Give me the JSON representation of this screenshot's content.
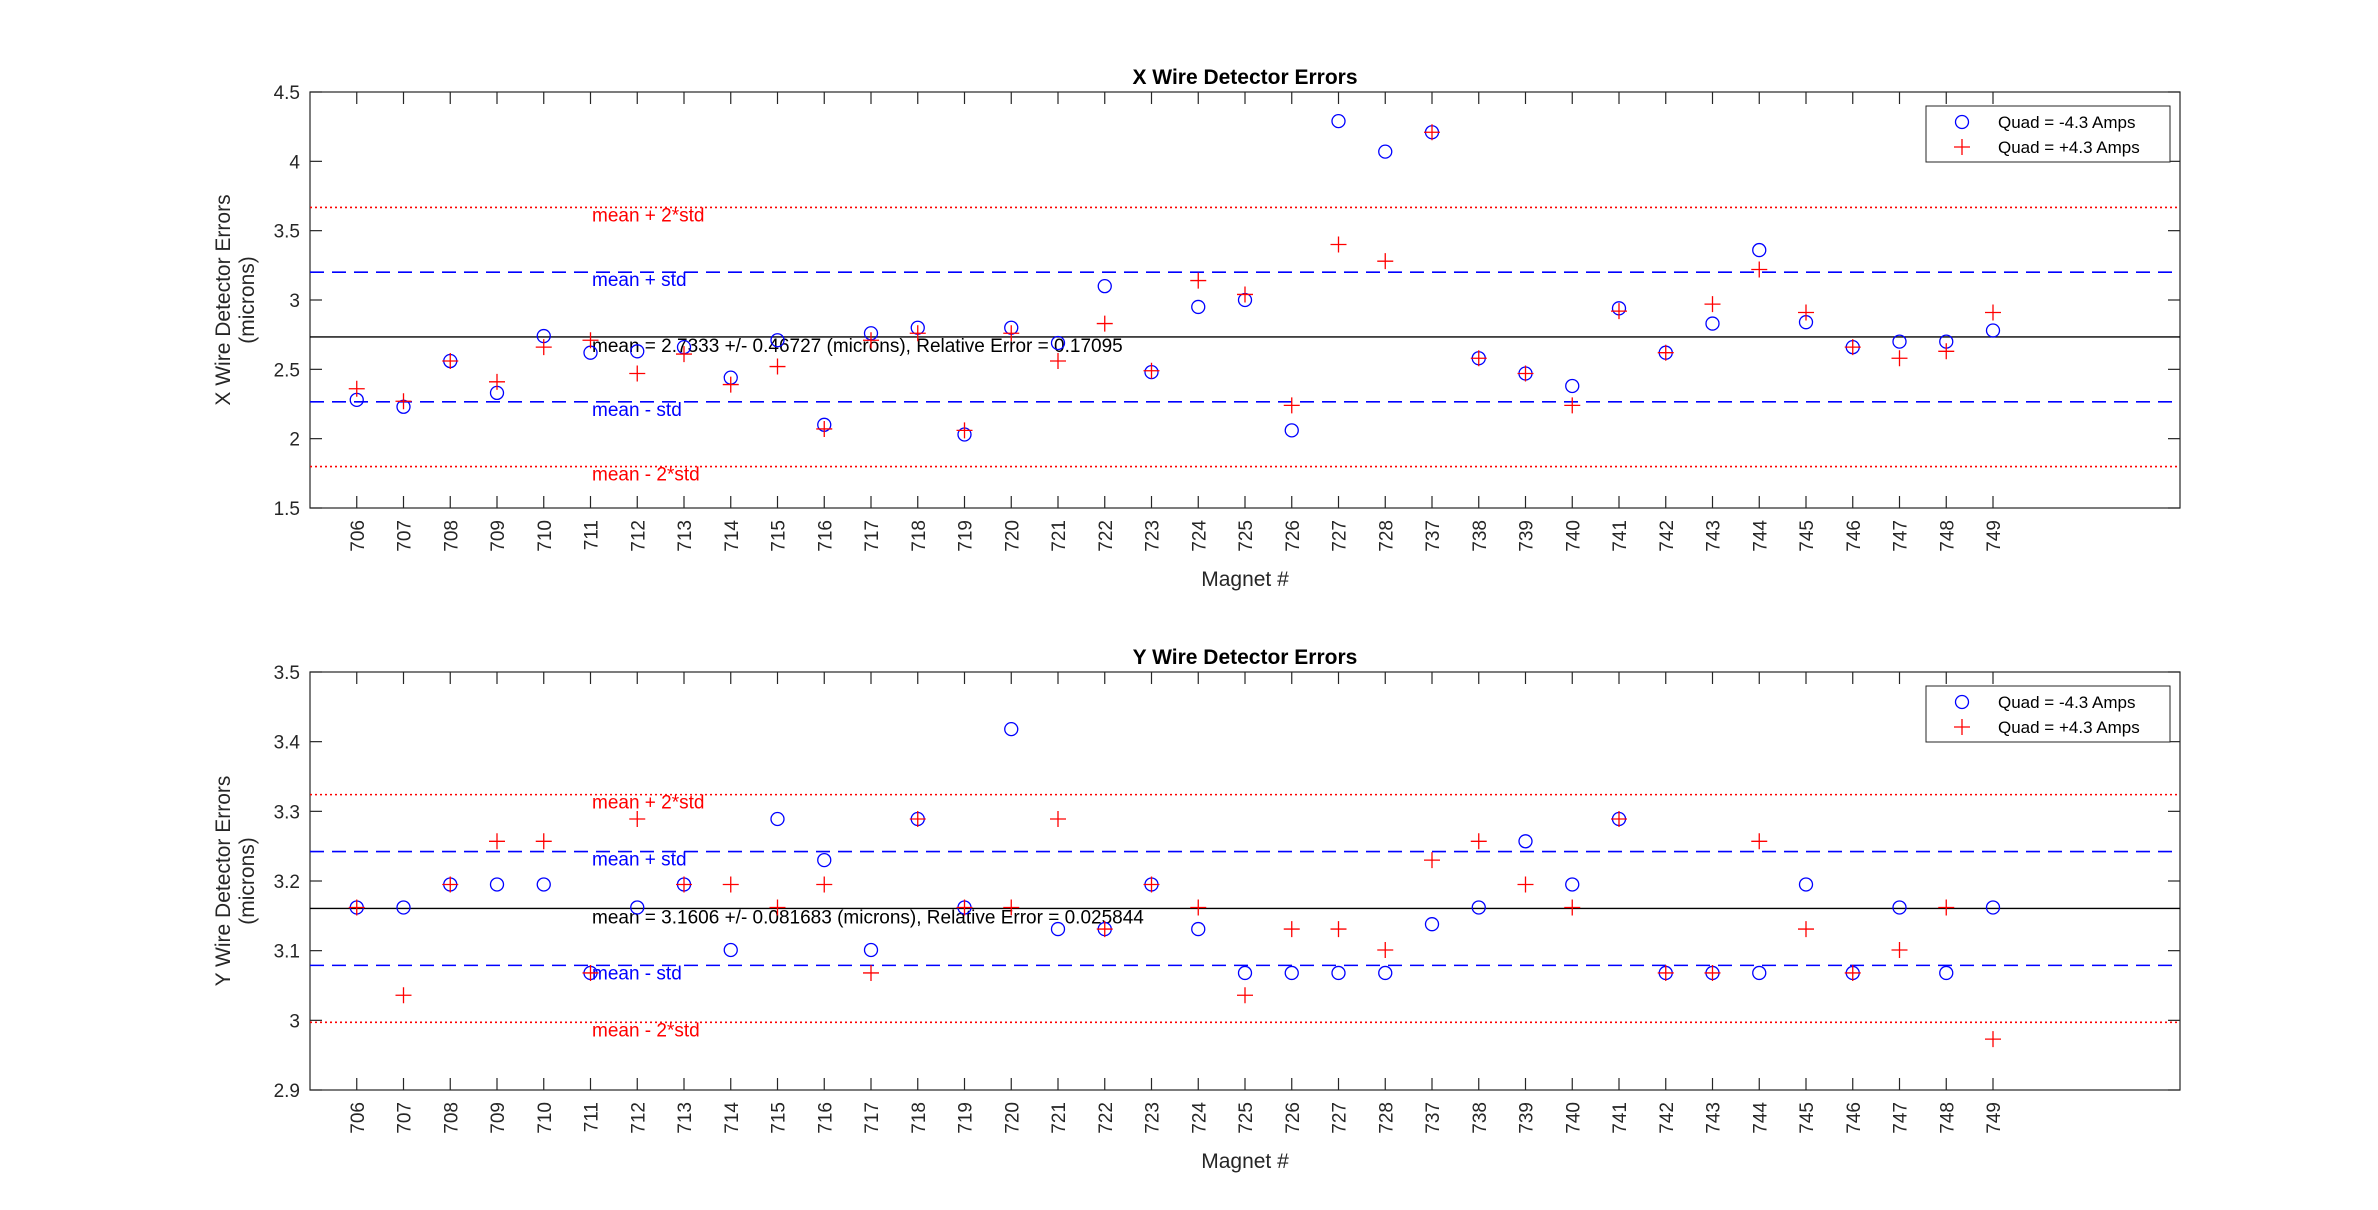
{
  "chart_data": [
    {
      "type": "scatter",
      "title": "X Wire Detector Errors",
      "xlabel": "Magnet #",
      "ylabel": [
        "X Wire Detector Errors",
        "(microns)"
      ],
      "categories": [
        "706",
        "707",
        "708",
        "709",
        "710",
        "711",
        "712",
        "713",
        "714",
        "715",
        "716",
        "717",
        "718",
        "719",
        "720",
        "721",
        "722",
        "723",
        "724",
        "725",
        "726",
        "727",
        "728",
        "737",
        "738",
        "739",
        "740",
        "741",
        "742",
        "743",
        "744",
        "745",
        "746",
        "747",
        "748",
        "749"
      ],
      "ylim": [
        1.5,
        4.5
      ],
      "yticks": [
        1.5,
        2,
        2.5,
        3,
        3.5,
        4,
        4.5
      ],
      "ytick_labels": [
        "1.5",
        "2",
        "2.5",
        "3",
        "3.5",
        "4",
        "4.5"
      ],
      "legend_position": "top-right",
      "series": [
        {
          "name": "Quad = -4.3 Amps",
          "marker": "circle",
          "color": "#0000ff",
          "values": [
            2.28,
            2.23,
            2.56,
            2.33,
            2.74,
            2.62,
            2.63,
            2.66,
            2.44,
            2.71,
            2.1,
            2.76,
            2.8,
            2.03,
            2.8,
            2.69,
            3.1,
            2.48,
            2.95,
            3.0,
            2.06,
            4.29,
            4.07,
            4.21,
            2.58,
            2.47,
            2.38,
            2.94,
            2.62,
            2.83,
            3.36,
            2.84,
            2.66,
            2.7,
            2.7,
            2.78
          ]
        },
        {
          "name": "Quad = +4.3 Amps",
          "marker": "plus",
          "color": "#ff0000",
          "values": [
            2.36,
            2.27,
            2.56,
            2.41,
            2.66,
            2.71,
            2.47,
            2.61,
            2.39,
            2.52,
            2.07,
            2.71,
            2.76,
            2.06,
            2.76,
            2.56,
            2.83,
            2.49,
            3.14,
            3.04,
            2.24,
            3.4,
            3.28,
            4.21,
            2.58,
            2.47,
            2.24,
            2.92,
            2.62,
            2.97,
            3.22,
            2.91,
            2.66,
            2.58,
            2.63,
            2.91
          ]
        }
      ],
      "reference_lines": [
        {
          "y": 3.6678,
          "style": "dotted",
          "color": "#ff0000",
          "label": "mean + 2*std",
          "label_color": "#ff0000"
        },
        {
          "y": 3.2006,
          "style": "dashed",
          "color": "#0000ff",
          "label": "mean + std",
          "label_color": "#0000ff"
        },
        {
          "y": 2.7333,
          "style": "solid",
          "color": "#000000",
          "label": "mean = 2.7333 +/- 0.46727 (microns), Relative Error = 0.17095",
          "label_color": "#000000"
        },
        {
          "y": 2.2661,
          "style": "dashed",
          "color": "#0000ff",
          "label": "mean - std",
          "label_color": "#0000ff"
        },
        {
          "y": 1.7988,
          "style": "dotted",
          "color": "#ff0000",
          "label": "mean - 2*std",
          "label_color": "#ff0000"
        }
      ]
    },
    {
      "type": "scatter",
      "title": "Y Wire Detector Errors",
      "xlabel": "Magnet #",
      "ylabel": [
        "Y Wire Detector Errors",
        "(microns)"
      ],
      "categories": [
        "706",
        "707",
        "708",
        "709",
        "710",
        "711",
        "712",
        "713",
        "714",
        "715",
        "716",
        "717",
        "718",
        "719",
        "720",
        "721",
        "722",
        "723",
        "724",
        "725",
        "726",
        "727",
        "728",
        "737",
        "738",
        "739",
        "740",
        "741",
        "742",
        "743",
        "744",
        "745",
        "746",
        "747",
        "748",
        "749"
      ],
      "ylim": [
        2.9,
        3.5
      ],
      "yticks": [
        2.9,
        3.0,
        3.1,
        3.2,
        3.3,
        3.4,
        3.5
      ],
      "ytick_labels": [
        "2.9",
        "3",
        "3.1",
        "3.2",
        "3.3",
        "3.4",
        "3.5"
      ],
      "legend_position": "top-right",
      "series": [
        {
          "name": "Quad = -4.3 Amps",
          "marker": "circle",
          "color": "#0000ff",
          "values": [
            3.162,
            3.162,
            3.195,
            3.195,
            3.195,
            3.068,
            3.162,
            3.195,
            3.101,
            3.289,
            3.23,
            3.101,
            3.289,
            3.162,
            3.418,
            3.131,
            3.131,
            3.195,
            3.131,
            3.068,
            3.068,
            3.068,
            3.068,
            3.138,
            3.162,
            3.257,
            3.195,
            3.289,
            3.068,
            3.068,
            3.068,
            3.195,
            3.068,
            3.162,
            3.068,
            3.162
          ]
        },
        {
          "name": "Quad = +4.3 Amps",
          "marker": "plus",
          "color": "#ff0000",
          "values": [
            3.162,
            3.036,
            3.195,
            3.257,
            3.257,
            3.068,
            3.289,
            3.195,
            3.195,
            3.162,
            3.195,
            3.068,
            3.289,
            3.162,
            3.162,
            3.289,
            3.131,
            3.195,
            3.162,
            3.036,
            3.131,
            3.131,
            3.101,
            3.23,
            3.257,
            3.195,
            3.162,
            3.289,
            3.068,
            3.068,
            3.257,
            3.131,
            3.068,
            3.101,
            3.162,
            2.973
          ]
        }
      ],
      "reference_lines": [
        {
          "y": 3.324,
          "style": "dotted",
          "color": "#ff0000",
          "label": "mean + 2*std",
          "label_color": "#ff0000"
        },
        {
          "y": 3.2423,
          "style": "dashed",
          "color": "#0000ff",
          "label": "mean + std",
          "label_color": "#0000ff"
        },
        {
          "y": 3.1606,
          "style": "solid",
          "color": "#000000",
          "label": "mean = 3.1606 +/- 0.081683 (microns), Relative Error = 0.025844",
          "label_color": "#000000"
        },
        {
          "y": 3.0789,
          "style": "dashed",
          "color": "#0000ff",
          "label": "mean - std",
          "label_color": "#0000ff"
        },
        {
          "y": 2.9972,
          "style": "dotted",
          "color": "#ff0000",
          "label": "mean - 2*std",
          "label_color": "#ff0000"
        }
      ]
    }
  ]
}
